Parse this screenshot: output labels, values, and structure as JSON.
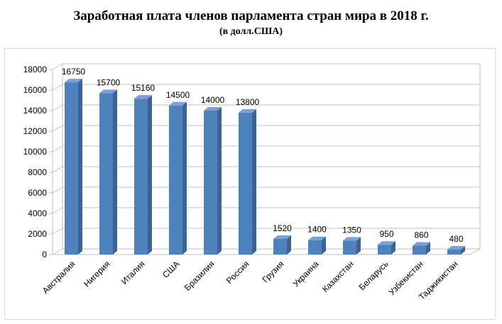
{
  "chart_data": {
    "type": "bar",
    "title": "Заработная плата членов парламента стран мира в 2018 г.",
    "subtitle": "(в долл.США)",
    "categories": [
      "Австралия",
      "Нигерия",
      "Италия",
      "США",
      "Бразилия",
      "Россия",
      "Грузия",
      "Украина",
      "Казахстан",
      "Беларусь",
      "Узбекистан",
      "Таджикистан"
    ],
    "values": [
      16750,
      15700,
      15160,
      14500,
      14000,
      13800,
      1520,
      1400,
      1350,
      950,
      860,
      480
    ],
    "yticks": [
      "0",
      "2000",
      "4000",
      "6000",
      "8000",
      "10000",
      "12000",
      "14000",
      "16000",
      "18000"
    ],
    "ylim": [
      0,
      18000
    ],
    "xlabel": "",
    "ylabel": "",
    "grid": true,
    "legend": "none",
    "bar_color": "#4f81bd",
    "bar_side_color": "#3a6496",
    "bar_top_color": "#7ba0d4"
  }
}
